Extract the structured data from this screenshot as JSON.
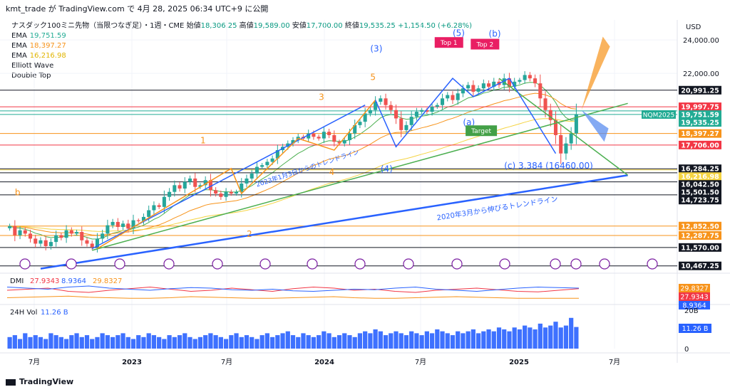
{
  "header": {
    "caption": "kmt_trade が TradingView.com で 4月 28, 2025 06:34 UTC+9 に公開",
    "symbol": "ナスダック100ミニ先物（当限つなぎ足）・1週・CME",
    "ohlc": {
      "open_label": "始値",
      "open": "18,306.25",
      "high_label": "高値",
      "high": "19,589.00",
      "low_label": "安値",
      "low": "17,700.00",
      "close_label": "終値",
      "close": "19,535.25",
      "change": "+1,154.50 (+6.28%)"
    },
    "currency": "USD"
  },
  "indicators": [
    {
      "name": "EMA",
      "value": "19,751.59",
      "color": "#22ab94"
    },
    {
      "name": "EMA",
      "value": "18,397.27",
      "color": "#f7931a"
    },
    {
      "name": "EMA",
      "value": "16,216.98",
      "color": "#f5d442"
    },
    {
      "name": "Elliott Wave",
      "value": "",
      "color": "#131722"
    },
    {
      "name": "Double Top",
      "value": "",
      "color": "#131722"
    }
  ],
  "colors": {
    "up": "#26a69a",
    "down": "#ef5350",
    "trend_blue": "#2962ff",
    "wave_orange": "#f7931a",
    "green_line": "#4caf50"
  },
  "chart_data": {
    "type": "candlestick",
    "interval": "1W",
    "x_tick_labels": [
      "7月",
      "2023",
      "7月",
      "2024",
      "7月",
      "2025",
      "7月"
    ],
    "ylim": [
      10200,
      25200
    ],
    "y_tick_labels": [
      "24,000.00",
      "22,000.00"
    ],
    "price_levels": [
      {
        "label": "20,991.25",
        "value": 20991.25,
        "color": "#131722"
      },
      {
        "label": "19,997.75",
        "value": 19997.75,
        "color": "#f23645"
      },
      {
        "label": "19,751.59",
        "value": 19751.59,
        "color": "#22ab94"
      },
      {
        "label": "NQM2025",
        "value": 19535.25,
        "color": "#22ab94"
      },
      {
        "label": "19,535.25",
        "value": 19535.25,
        "color": "#22ab94"
      },
      {
        "label": "18,397.27",
        "value": 18397.27,
        "color": "#f7931a"
      },
      {
        "label": "17,706.00",
        "value": 17706.0,
        "color": "#f23645"
      },
      {
        "label": "16,284.25",
        "value": 16284.25,
        "color": "#131722"
      },
      {
        "label": "16,216.98",
        "value": 16216.98,
        "color": "#f5d442"
      },
      {
        "label": "16,042.50",
        "value": 16042.5,
        "color": "#131722"
      },
      {
        "label": "15,501.50",
        "value": 15501.5,
        "color": "#131722"
      },
      {
        "label": "14,723.75",
        "value": 14723.75,
        "color": "#131722"
      },
      {
        "label": "12,852.50",
        "value": 12852.5,
        "color": "#f7931a"
      },
      {
        "label": "12,287.75",
        "value": 12287.75,
        "color": "#f7931a"
      },
      {
        "label": "11,570.00",
        "value": 11570.0,
        "color": "#131722"
      },
      {
        "label": "10,467.25",
        "value": 10467.25,
        "color": "#131722"
      }
    ],
    "wave_labels": [
      {
        "text": "b",
        "color": "#f7931a"
      },
      {
        "text": "1",
        "color": "#f7931a"
      },
      {
        "text": "2",
        "color": "#f7931a"
      },
      {
        "text": "3",
        "color": "#f7931a"
      },
      {
        "text": "4",
        "color": "#f7931a"
      },
      {
        "text": "5",
        "color": "#f7931a"
      },
      {
        "text": "(3)",
        "color": "#2962ff"
      },
      {
        "text": "(4)",
        "color": "#2962ff"
      },
      {
        "text": "(5)",
        "color": "#2962ff"
      },
      {
        "text": "(a)",
        "color": "#2962ff"
      },
      {
        "text": "(b)",
        "color": "#2962ff"
      },
      {
        "text": "(c) 3.384 (16460.00)",
        "color": "#2962ff"
      }
    ],
    "annotations": {
      "trend_2023": "2023年1月3日からのトレンドライン",
      "trend_2020": "2020年3月から伸びるトレンドライン",
      "top1": "Top 1",
      "top2": "Top 2",
      "target": "Target"
    },
    "series": [
      {
        "name": "NQM2025 weekly closes",
        "values": [
          12850,
          12300,
          12600,
          12400,
          12100,
          11800,
          12000,
          11650,
          11900,
          12300,
          12150,
          12600,
          12400,
          12500,
          12000,
          11800,
          11600,
          12100,
          12400,
          12900,
          13100,
          12800,
          13000,
          12700,
          13200,
          13150,
          13400,
          13800,
          14100,
          14000,
          14600,
          14900,
          15300,
          15100,
          15500,
          15700,
          15200,
          15300,
          15600,
          15000,
          14800,
          14600,
          14900,
          14800,
          14900,
          15400,
          15700,
          16000,
          16400,
          16500,
          16700,
          16900,
          17400,
          17600,
          17800,
          18000,
          18200,
          18100,
          18400,
          18200,
          18100,
          18500,
          18300,
          17900,
          17800,
          18000,
          18400,
          18900,
          19100,
          19600,
          19800,
          20300,
          20500,
          20100,
          19800,
          19300,
          18600,
          18900,
          19400,
          19700,
          19800,
          19700,
          20000,
          20100,
          20500,
          20700,
          20400,
          20800,
          21100,
          21300,
          20900,
          21100,
          21400,
          21200,
          21500,
          21300,
          21700,
          21200,
          21500,
          21600,
          21900,
          21700,
          21400,
          20500,
          19800,
          19200,
          18300,
          17200,
          17800,
          18400,
          19535
        ]
      },
      {
        "name": "DMI +DI",
        "values": [
          24,
          26,
          28,
          22,
          20,
          24,
          27,
          30,
          26,
          22,
          24,
          28,
          25,
          22,
          27,
          30,
          28,
          24,
          26,
          22,
          20,
          24,
          26,
          28,
          25,
          22,
          21,
          24,
          27
        ]
      },
      {
        "name": "DMI -DI",
        "values": [
          30,
          28,
          26,
          30,
          32,
          28,
          26,
          24,
          27,
          29,
          28,
          25,
          24,
          26,
          23,
          22,
          24,
          26,
          25,
          28,
          30,
          26,
          24,
          22,
          25,
          28,
          30,
          29,
          28
        ]
      },
      {
        "name": "ADX",
        "values": [
          10,
          11,
          12,
          13,
          11,
          10,
          9,
          9,
          10,
          12,
          11,
          10,
          9,
          9,
          10,
          11,
          12,
          10,
          9,
          9,
          10,
          11,
          12,
          11,
          10,
          9,
          9,
          9,
          9
        ]
      }
    ],
    "dmi": {
      "label": "DMI",
      "values": [
        "27.9343",
        "8.9364",
        "29.8327"
      ],
      "colors": [
        "#f23645",
        "#2962ff",
        "#f7931a"
      ],
      "scale_values": [
        "29.8327",
        "27.9343",
        "8.9364"
      ]
    },
    "volume": {
      "label": "24H Vol",
      "value": "11.26 B",
      "scale_top": "20B",
      "scale_zero": "0",
      "values": [
        6,
        7,
        5,
        8,
        6,
        7,
        6,
        5,
        8,
        7,
        6,
        5,
        7,
        8,
        6,
        7,
        5,
        6,
        8,
        7,
        6,
        7,
        8,
        6,
        5,
        7,
        6,
        8,
        7,
        6,
        5,
        7,
        6,
        7,
        8,
        6,
        5,
        6,
        7,
        8,
        7,
        6,
        5,
        7,
        8,
        6,
        7,
        6,
        5,
        7,
        8,
        6,
        7,
        8,
        9,
        7,
        6,
        8,
        7,
        6,
        7,
        9,
        8,
        6,
        7,
        8,
        7,
        6,
        8,
        9,
        8,
        10,
        9,
        7,
        8,
        9,
        8,
        7,
        9,
        8,
        7,
        9,
        8,
        10,
        9,
        8,
        7,
        9,
        8,
        9,
        10,
        8,
        9,
        10,
        9,
        11,
        10,
        9,
        11,
        10,
        12,
        11,
        10,
        13,
        11,
        12,
        14,
        11,
        12,
        16,
        11.26
      ]
    }
  },
  "footer": {
    "brand": "TradingView"
  }
}
